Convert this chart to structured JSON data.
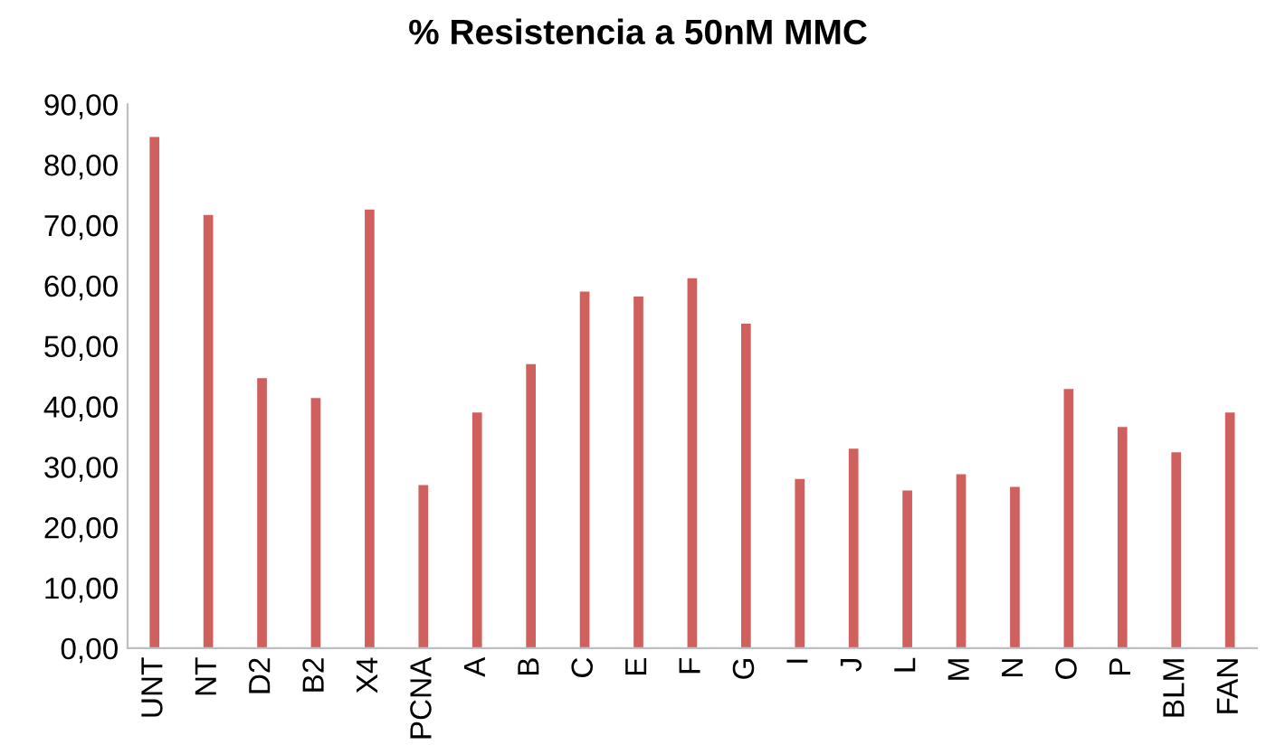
{
  "chart_data": {
    "type": "bar",
    "title": "% Resistencia a 50nM MMC",
    "categories": [
      "UNT",
      "NT",
      "D2",
      "B2",
      "X4",
      "PCNA",
      "A",
      "B",
      "C",
      "E",
      "F",
      "G",
      "I",
      "J",
      "L",
      "M",
      "N",
      "O",
      "P",
      "BLM",
      "FAN"
    ],
    "values": [
      84.6,
      71.7,
      44.7,
      41.4,
      72.6,
      27.0,
      39.0,
      47.0,
      59.0,
      58.2,
      61.2,
      53.7,
      28.0,
      33.0,
      26.1,
      28.8,
      26.7,
      42.9,
      36.6,
      32.4,
      39.0
    ],
    "color": "#d0605e",
    "ylim": [
      0,
      90
    ],
    "yticks": [
      {
        "value": 0,
        "label": "0,00"
      },
      {
        "value": 10,
        "label": "10,00"
      },
      {
        "value": 20,
        "label": "20,00"
      },
      {
        "value": 30,
        "label": "30,00"
      },
      {
        "value": 40,
        "label": "40,00"
      },
      {
        "value": 50,
        "label": "50,00"
      },
      {
        "value": 60,
        "label": "60,00"
      },
      {
        "value": 70,
        "label": "70,00"
      },
      {
        "value": 80,
        "label": "80,00"
      },
      {
        "value": 90,
        "label": "90,00"
      }
    ],
    "grid": false,
    "legend": false
  }
}
